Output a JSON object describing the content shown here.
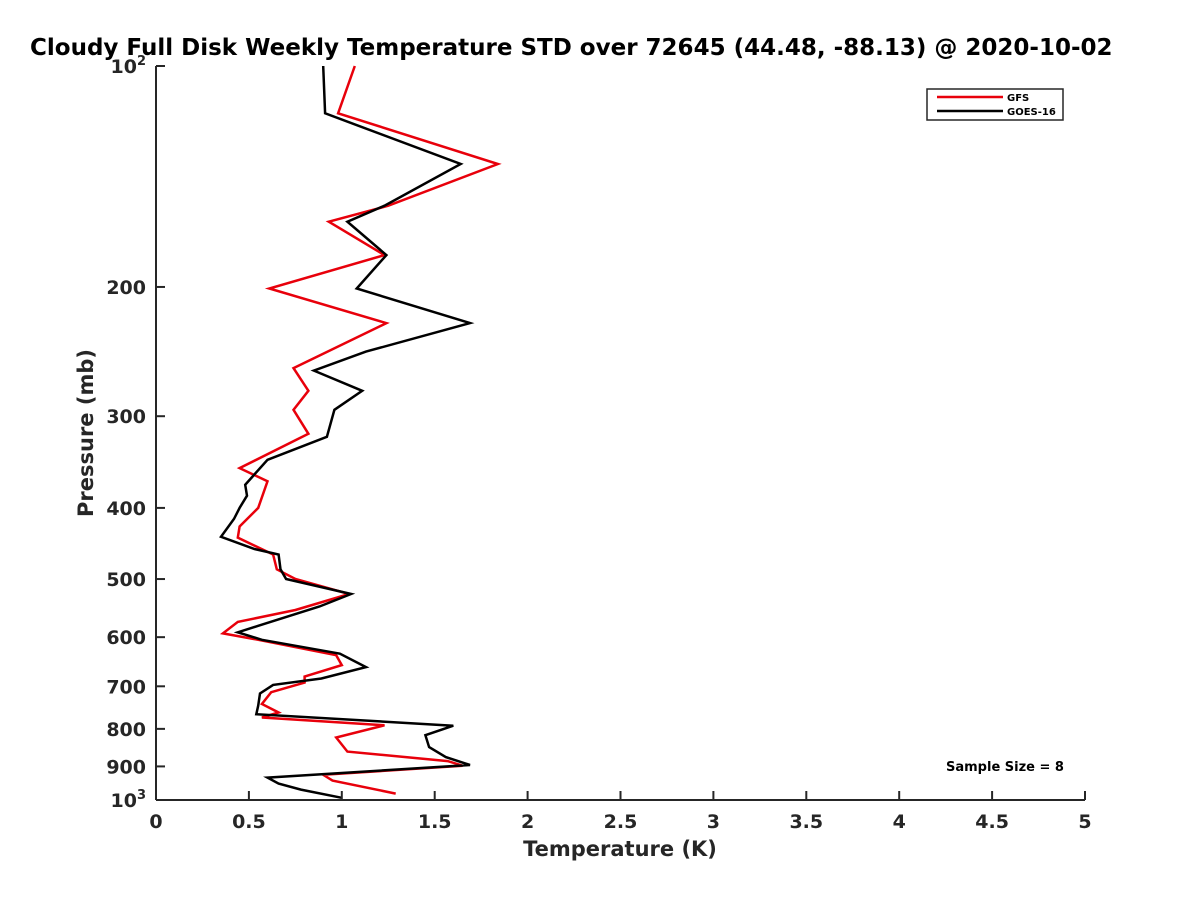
{
  "chart_data": {
    "type": "line",
    "title": "Cloudy Full Disk Weekly Temperature STD over 72645 (44.48, -88.13) @ 2020-10-02",
    "xlabel": "Temperature (K)",
    "ylabel": "Pressure (mb)",
    "xlim": [
      0,
      5
    ],
    "ylim": [
      100,
      1000
    ],
    "y_scale": "log",
    "y_reversed": true,
    "x_ticks": [
      "0",
      "0.5",
      "1",
      "1.5",
      "2",
      "2.5",
      "3",
      "3.5",
      "4",
      "4.5",
      "5"
    ],
    "y_ticks": [
      {
        "value": 100,
        "base": "10",
        "exp": "2"
      },
      {
        "value": 200,
        "label": "200"
      },
      {
        "value": 300,
        "label": "300"
      },
      {
        "value": 400,
        "label": "400"
      },
      {
        "value": 500,
        "label": "500"
      },
      {
        "value": 600,
        "label": "600"
      },
      {
        "value": 700,
        "label": "700"
      },
      {
        "value": 800,
        "label": "800"
      },
      {
        "value": 900,
        "label": "900"
      },
      {
        "value": 1000,
        "base": "10",
        "exp": "3"
      }
    ],
    "grid": false,
    "legend_position": "top-right",
    "annotation": "Sample Size = 8",
    "series": [
      {
        "name": "GFS",
        "color": "#e8000b",
        "points": [
          [
            1.07,
            100
          ],
          [
            0.98,
            116
          ],
          [
            1.84,
            136
          ],
          [
            1.25,
            155
          ],
          [
            0.93,
            163
          ],
          [
            1.23,
            181
          ],
          [
            0.61,
            201
          ],
          [
            1.24,
            224
          ],
          [
            0.74,
            258
          ],
          [
            0.82,
            277
          ],
          [
            0.74,
            294
          ],
          [
            0.82,
            317
          ],
          [
            0.45,
            353
          ],
          [
            0.6,
            368
          ],
          [
            0.55,
            400
          ],
          [
            0.45,
            424
          ],
          [
            0.44,
            439
          ],
          [
            0.63,
            463
          ],
          [
            0.65,
            485
          ],
          [
            0.75,
            500
          ],
          [
            1.04,
            524
          ],
          [
            0.75,
            551
          ],
          [
            0.44,
            572
          ],
          [
            0.36,
            593
          ],
          [
            0.55,
            605
          ],
          [
            0.97,
            635
          ],
          [
            1.0,
            655
          ],
          [
            0.8,
            679
          ],
          [
            0.8,
            692
          ],
          [
            0.62,
            713
          ],
          [
            0.57,
            740
          ],
          [
            0.66,
            760
          ],
          [
            0.57,
            772
          ],
          [
            1.23,
            791
          ],
          [
            0.97,
            822
          ],
          [
            1.03,
            859
          ],
          [
            1.57,
            885
          ],
          [
            1.65,
            898
          ],
          [
            0.9,
            924
          ],
          [
            0.95,
            941
          ],
          [
            1.29,
            980
          ]
        ]
      },
      {
        "name": "GOES-16",
        "color": "#000000",
        "points": [
          [
            0.9,
            100
          ],
          [
            0.91,
            116
          ],
          [
            1.64,
            136
          ],
          [
            1.23,
            155
          ],
          [
            1.03,
            163
          ],
          [
            1.24,
            181
          ],
          [
            1.08,
            201
          ],
          [
            1.69,
            224
          ],
          [
            1.13,
            245
          ],
          [
            0.85,
            260
          ],
          [
            1.11,
            277
          ],
          [
            0.96,
            294
          ],
          [
            0.92,
            320
          ],
          [
            0.6,
            344
          ],
          [
            0.48,
            372
          ],
          [
            0.49,
            385
          ],
          [
            0.45,
            400
          ],
          [
            0.42,
            414
          ],
          [
            0.35,
            438
          ],
          [
            0.53,
            455
          ],
          [
            0.66,
            463
          ],
          [
            0.67,
            485
          ],
          [
            0.7,
            500
          ],
          [
            1.05,
            524
          ],
          [
            0.88,
            545
          ],
          [
            0.55,
            579
          ],
          [
            0.44,
            591
          ],
          [
            0.57,
            605
          ],
          [
            0.99,
            632
          ],
          [
            1.13,
            659
          ],
          [
            0.89,
            683
          ],
          [
            0.63,
            697
          ],
          [
            0.56,
            716
          ],
          [
            0.55,
            744
          ],
          [
            0.54,
            764
          ],
          [
            1.6,
            792
          ],
          [
            1.45,
            816
          ],
          [
            1.47,
            847
          ],
          [
            1.56,
            874
          ],
          [
            1.69,
            896
          ],
          [
            0.6,
            932
          ],
          [
            0.66,
            950
          ],
          [
            0.78,
            968
          ],
          [
            1.0,
            993
          ]
        ]
      }
    ]
  }
}
